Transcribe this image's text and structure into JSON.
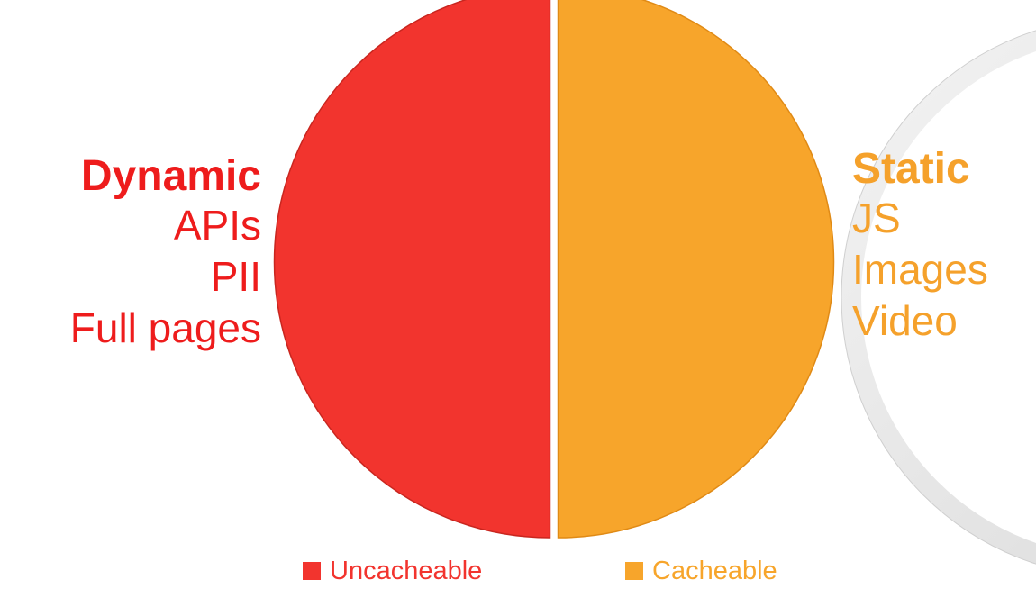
{
  "chart_data": {
    "type": "pie",
    "categories": [
      "Uncacheable",
      "Cacheable"
    ],
    "values": [
      50,
      50
    ],
    "colors": [
      "#f2342e",
      "#f7a52b"
    ],
    "legend_position": "bottom"
  },
  "annotations": {
    "left": {
      "heading": "Dynamic",
      "items": [
        "APIs",
        "PII",
        "Full pages"
      ],
      "color": "#ee1c1c"
    },
    "right": {
      "heading": "Static",
      "items": [
        "JS",
        "Images",
        "Video"
      ],
      "color": "#f5a12b"
    }
  },
  "legend": {
    "items": [
      {
        "label": "Uncacheable",
        "color": "#f2342e"
      },
      {
        "label": "Cacheable",
        "color": "#f7a52b"
      }
    ]
  }
}
